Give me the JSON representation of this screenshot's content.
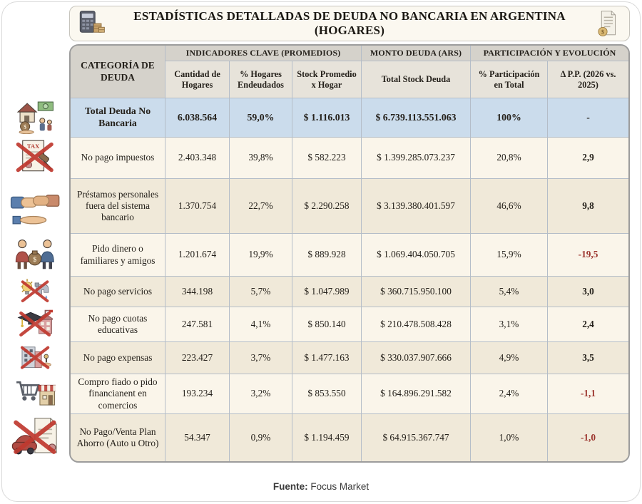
{
  "chart_data": {
    "type": "table",
    "title": "ESTADÍSTICAS DETALLADAS DE DEUDA NO BANCARIA EN ARGENTINA (HOGARES)",
    "corner_header": "CATEGORÍA DE DEUDA",
    "column_groups": [
      {
        "label": "INDICADORES CLAVE (PROMEDIOS)",
        "span": 3
      },
      {
        "label": "MONTO DEUDA (ARS)",
        "span": 1
      },
      {
        "label": "PARTICIPACIÓN Y EVOLUCIÓN",
        "span": 2
      }
    ],
    "columns": [
      "Cantidad de Hogares",
      "% Hogares Endeudados",
      "Stock Promedio x Hogar",
      "Total Stock Deuda",
      "% Participación en Total",
      "Δ P.P. (2026 vs. 2025)"
    ],
    "rows": [
      {
        "category": "Total Deuda No Bancaria",
        "icon": "house-family-money-icon",
        "highlight": true,
        "values": [
          "6.038.564",
          "59,0%",
          "$ 1.116.013",
          "$ 6.739.113.551.063",
          "100%",
          "-"
        ]
      },
      {
        "category": "No pago impuestos",
        "icon": "tax-document-crossed-icon",
        "highlight": false,
        "values": [
          "2.403.348",
          "39,8%",
          "$ 582.223",
          "$ 1.399.285.073.237",
          "20,8%",
          "2,9"
        ]
      },
      {
        "category": "Préstamos personales fuera del sistema bancario",
        "icon": "handshake-loan-icon",
        "highlight": false,
        "values": [
          "1.370.754",
          "22,7%",
          "$ 2.290.258",
          "$ 3.139.380.401.597",
          "46,6%",
          "9,8"
        ]
      },
      {
        "category": "Pido dinero o familiares y amigos",
        "icon": "family-money-bag-icon",
        "highlight": false,
        "values": [
          "1.201.674",
          "19,9%",
          "$ 889.928",
          "$ 1.069.404.050.705",
          "15,9%",
          "-19,5"
        ]
      },
      {
        "category": "No pago servicios",
        "icon": "utilities-crossed-icon",
        "highlight": false,
        "values": [
          "344.198",
          "5,7%",
          "$ 1.047.989",
          "$ 360.715.950.100",
          "5,4%",
          "3,0"
        ]
      },
      {
        "category": "No pago cuotas educativas",
        "icon": "education-crossed-icon",
        "highlight": false,
        "values": [
          "247.581",
          "4,1%",
          "$ 850.140",
          "$ 210.478.508.428",
          "3,1%",
          "2,4"
        ]
      },
      {
        "category": "No pago expensas",
        "icon": "building-crossed-icon",
        "highlight": false,
        "values": [
          "223.427",
          "3,7%",
          "$ 1.477.163",
          "$ 330.037.907.666",
          "4,9%",
          "3,5"
        ]
      },
      {
        "category": "Compro fiado o pido financianent en comercios",
        "icon": "store-cart-icon",
        "highlight": false,
        "values": [
          "193.234",
          "3,2%",
          "$ 853.550",
          "$ 164.896.291.582",
          "2,4%",
          "-1,1"
        ]
      },
      {
        "category": "No Pago/Venta Plan Ahorro (Auto u Otro)",
        "icon": "car-plan-crossed-icon",
        "highlight": false,
        "values": [
          "54.347",
          "0,9%",
          "$ 1.194.459",
          "$ 64.915.367.747",
          "1,0%",
          "-1,0"
        ]
      }
    ]
  },
  "header": {
    "left_icon": "calculator-coins-icon",
    "right_icon": "invoice-coin-icon"
  },
  "footer": {
    "source_label": "Fuente:",
    "source_value": "Focus Market"
  },
  "colors": {
    "total_row_highlight": "#cbdcec",
    "negative_delta_red": "#9c352e",
    "header_gray": "#d5d2cb",
    "row_cream_light": "#faf5ea",
    "row_cream_dark": "#f0e9d9"
  }
}
